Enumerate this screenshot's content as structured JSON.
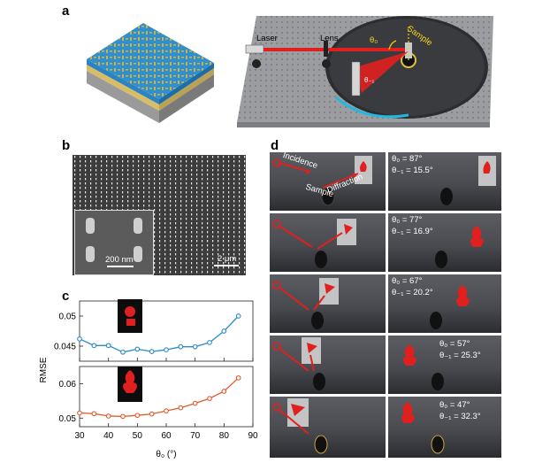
{
  "panels": {
    "a": "a",
    "b": "b",
    "c": "c",
    "d": "d"
  },
  "panel_a": {
    "laser": "Laser",
    "lens": "Lens",
    "sample": "Sample",
    "theta0": "θ₀",
    "theta_m1": "θ₋₁"
  },
  "panel_b": {
    "inset_scale": "200 nm",
    "main_scale": "2 μm"
  },
  "panel_d": {
    "incidence": "Incidence",
    "diffraction": "Diffraction",
    "sample": "Sample",
    "rows": [
      {
        "t0": "θ₀ = 87°",
        "t1": "θ₋₁ = 15.5°"
      },
      {
        "t0": "θ₀ = 77°",
        "t1": "θ₋₁ = 16.9°"
      },
      {
        "t0": "θ₀ = 67°",
        "t1": "θ₋₁ = 20.2°"
      },
      {
        "t0": "θ₀ = 57°",
        "t1": "θ₋₁ = 25.3°"
      },
      {
        "t0": "θ₀ = 47°",
        "t1": "θ₋₁ = 32.3°"
      }
    ]
  },
  "colors": {
    "blue": "#2a8bc8",
    "orange": "#e05a2a",
    "laser": "#e0201e",
    "metal": "#c9a53a"
  },
  "chart_data": [
    {
      "type": "line",
      "series": [
        {
          "values": [
            0.0462,
            0.0451,
            0.0451,
            0.044,
            0.0445,
            0.0441,
            0.0444,
            0.0449,
            0.0449,
            0.0456,
            0.0475,
            0.05
          ]
        }
      ],
      "x": [
        30,
        35,
        40,
        45,
        50,
        55,
        60,
        65,
        70,
        75,
        80,
        85
      ],
      "ylim": [
        0.0425,
        0.0525
      ],
      "yticks": [
        "0.05",
        "0.045"
      ],
      "ylabel": "RMSE",
      "color": "#2a8bc8"
    },
    {
      "type": "line",
      "series": [
        {
          "values": [
            0.0515,
            0.0513,
            0.0506,
            0.0505,
            0.0508,
            0.0512,
            0.0521,
            0.053,
            0.0543,
            0.0557,
            0.0578,
            0.0617
          ]
        }
      ],
      "x": [
        30,
        35,
        40,
        45,
        50,
        55,
        60,
        65,
        70,
        75,
        80,
        85
      ],
      "ylim": [
        0.0475,
        0.065
      ],
      "yticks": [
        "0.06",
        "0.05"
      ],
      "xticks": [
        "30",
        "40",
        "50",
        "60",
        "70",
        "80",
        "90"
      ],
      "xlabel": "θ₀ (°)",
      "color": "#e05a2a"
    }
  ]
}
